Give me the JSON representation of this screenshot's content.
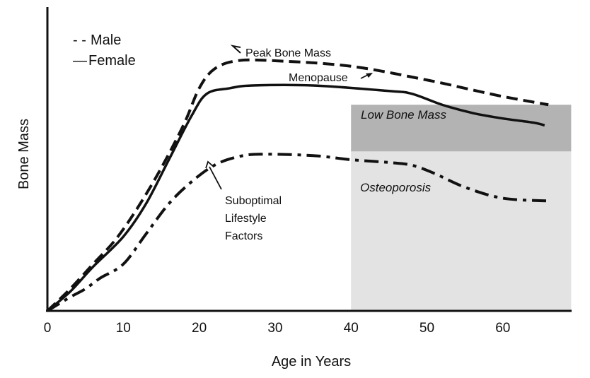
{
  "chart_data": {
    "type": "line",
    "title": "",
    "xlabel": "Age in Years",
    "ylabel": "Bone Mass",
    "xlim": [
      0,
      69
    ],
    "ylim": [
      0,
      100
    ],
    "x_ticks": [
      "0",
      "10",
      "20",
      "30",
      "40",
      "50",
      "60"
    ],
    "grid": false,
    "legend": {
      "position": "top-left",
      "entries": [
        {
          "marker": "- -",
          "label": "Male"
        },
        {
          "marker": "—",
          "label": "Female"
        }
      ]
    },
    "series": [
      {
        "name": "Male",
        "style": "dashed",
        "points": [
          [
            0,
            0
          ],
          [
            3,
            8
          ],
          [
            6,
            17
          ],
          [
            9,
            26
          ],
          [
            12,
            38
          ],
          [
            15,
            52
          ],
          [
            18,
            68
          ],
          [
            20,
            81
          ],
          [
            22,
            88
          ],
          [
            25,
            91
          ],
          [
            30,
            91
          ],
          [
            40,
            89
          ],
          [
            50,
            84
          ],
          [
            55,
            81
          ],
          [
            60,
            78
          ],
          [
            66,
            75
          ]
        ]
      },
      {
        "name": "Female",
        "style": "solid",
        "points": [
          [
            0,
            0
          ],
          [
            3,
            7
          ],
          [
            6,
            16
          ],
          [
            10,
            27
          ],
          [
            13,
            39
          ],
          [
            16,
            55
          ],
          [
            19,
            71
          ],
          [
            21,
            79
          ],
          [
            24,
            81
          ],
          [
            27,
            82
          ],
          [
            35,
            82
          ],
          [
            45,
            80
          ],
          [
            48,
            79
          ],
          [
            52,
            75
          ],
          [
            56,
            72
          ],
          [
            60,
            70
          ],
          [
            64,
            68.5
          ],
          [
            65.5,
            67.5
          ]
        ]
      },
      {
        "name": "Suboptimal Lifestyle Factors",
        "style": "dash-dot",
        "points": [
          [
            0,
            0
          ],
          [
            3,
            5
          ],
          [
            5,
            8
          ],
          [
            7,
            12
          ],
          [
            10,
            17
          ],
          [
            13,
            28
          ],
          [
            16,
            39
          ],
          [
            19,
            47
          ],
          [
            22,
            53
          ],
          [
            25,
            56
          ],
          [
            28,
            57
          ],
          [
            35,
            56.5
          ],
          [
            40,
            55
          ],
          [
            45,
            54
          ],
          [
            48,
            53
          ],
          [
            51,
            50
          ],
          [
            55,
            45
          ],
          [
            60,
            41
          ],
          [
            66,
            40
          ]
        ]
      }
    ],
    "regions": [
      {
        "label": "Low Bone Mass",
        "x_range": [
          40,
          69
        ],
        "y_range": [
          58,
          75
        ],
        "color": "#b3b3b3"
      },
      {
        "label": "Osteoporosis",
        "x_range": [
          40,
          69
        ],
        "y_range": [
          0,
          58
        ],
        "color": "#e3e3e3"
      }
    ],
    "annotations": [
      {
        "text": "Peak Bone Mass",
        "points_to": [
          24.5,
          86
        ]
      },
      {
        "text": "Menopause",
        "points_to": [
          47,
          79.5
        ]
      },
      {
        "lines": [
          "Suboptimal",
          "Lifestyle",
          "Factors"
        ],
        "points_to": [
          21,
          49
        ]
      }
    ]
  }
}
